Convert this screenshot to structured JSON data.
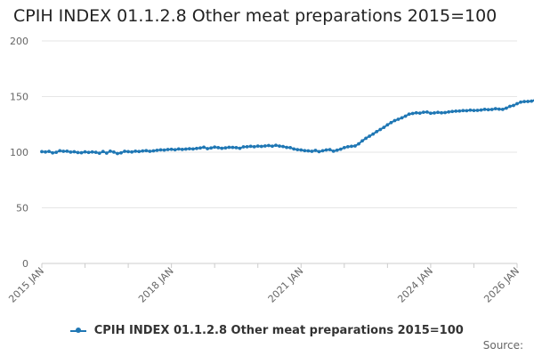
{
  "title": "CPIH INDEX 01.1.2.8 Other meat preparations 2015=100",
  "source_label": "Source:",
  "colors": {
    "series": "#1f77b4",
    "grid": "#e6e6e6",
    "axis": "#cccccc"
  },
  "chart_data": {
    "type": "line",
    "title": "CPIH INDEX 01.1.2.8 Other meat preparations 2015=100",
    "xlabel": "",
    "ylabel": "",
    "ylim": [
      0,
      200
    ],
    "yticks": [
      0,
      50,
      100,
      150,
      200
    ],
    "x_start": "2015-01",
    "x_end": "2026-01",
    "xticks": [
      "2015 JAN",
      "2018 JAN",
      "2021 JAN",
      "2024 JAN",
      "2026 JAN"
    ],
    "grid": true,
    "legend_position": "bottom",
    "series": [
      {
        "name": "CPIH INDEX 01.1.2.8 Other meat preparations 2015=100",
        "values": [
          100.5,
          100.2,
          100.7,
          99.4,
          99.9,
          101.3,
          100.8,
          100.9,
          100.1,
          100.4,
          99.7,
          99.5,
          100.3,
          99.8,
          100.2,
          99.9,
          99.1,
          100.6,
          99.2,
          100.9,
          100.1,
          98.8,
          99.4,
          100.8,
          100.5,
          100.2,
          100.9,
          100.6,
          101.1,
          101.4,
          100.8,
          101.2,
          101.7,
          102.1,
          101.9,
          102.4,
          102.6,
          102.2,
          102.9,
          102.5,
          102.8,
          103.1,
          102.9,
          103.4,
          103.8,
          104.5,
          103.2,
          103.8,
          104.6,
          104.1,
          103.5,
          103.9,
          104.4,
          104.3,
          104.1,
          103.5,
          104.8,
          104.9,
          105.3,
          104.9,
          105.5,
          105.2,
          105.6,
          106.0,
          105.4,
          106.2,
          105.5,
          105.1,
          104.3,
          104.1,
          102.9,
          102.3,
          102.0,
          101.4,
          101.2,
          100.8,
          101.6,
          100.5,
          101.3,
          102.0,
          102.3,
          100.9,
          101.8,
          102.7,
          104.1,
          104.9,
          105.3,
          105.6,
          107.5,
          110.2,
          112.5,
          114.4,
          116.3,
          118.5,
          120.4,
          122.3,
          124.6,
          126.6,
          128.4,
          129.6,
          130.9,
          132.4,
          134.2,
          134.8,
          135.4,
          135.1,
          135.9,
          136.1,
          135.0,
          135.3,
          135.8,
          135.4,
          135.6,
          136.2,
          136.6,
          136.9,
          137.0,
          137.4,
          137.3,
          137.8,
          137.5,
          137.6,
          137.9,
          138.5,
          138.2,
          138.4,
          139.1,
          138.7,
          138.5,
          139.6,
          141.2,
          142.0,
          143.6,
          145.0,
          145.5,
          145.6,
          145.9,
          146.7,
          147.3
        ]
      }
    ]
  }
}
